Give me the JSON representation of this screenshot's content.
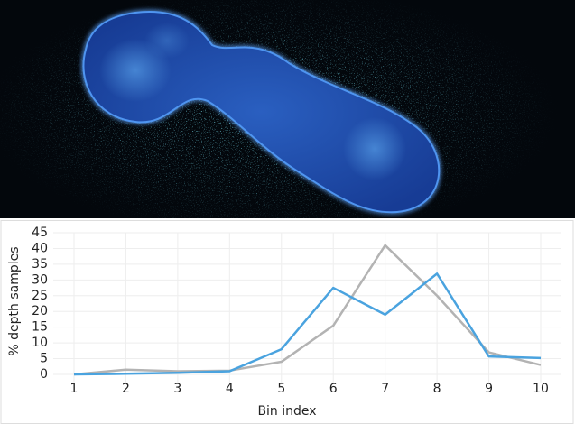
{
  "chart_data": {
    "type": "line",
    "x": [
      1,
      2,
      3,
      4,
      5,
      6,
      7,
      8,
      9,
      10
    ],
    "xlim": [
      0.6,
      10.4
    ],
    "xticks": [
      1,
      2,
      3,
      4,
      5,
      6,
      7,
      8,
      9,
      10
    ],
    "ylim": [
      0,
      45
    ],
    "yticks": [
      0,
      5,
      10,
      15,
      20,
      25,
      30,
      35,
      40,
      45
    ],
    "x_label": "Bin index",
    "y_label": "% depth samples",
    "grid": true,
    "series": [
      {
        "color": "#b3b3b3",
        "values": [
          0,
          1.5,
          1,
          1.2,
          4,
          15.5,
          41,
          25,
          7,
          3
        ]
      },
      {
        "color": "#4aa3df",
        "values": [
          0,
          0.2,
          0.5,
          1,
          8,
          27.5,
          19,
          32,
          5.7,
          5.2
        ]
      }
    ]
  }
}
